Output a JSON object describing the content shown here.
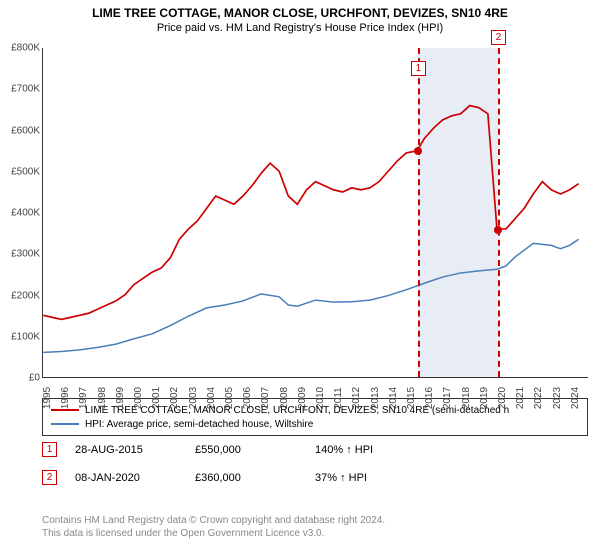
{
  "title": "LIME TREE COTTAGE, MANOR CLOSE, URCHFONT, DEVIZES, SN10 4RE",
  "subtitle": "Price paid vs. HM Land Registry's House Price Index (HPI)",
  "title_fontsize": 12,
  "subtitle_fontsize": 11,
  "chart": {
    "type": "line",
    "x_domain": [
      1995,
      2025
    ],
    "y_domain": [
      0,
      800000
    ],
    "y_ticks": [
      0,
      100000,
      200000,
      300000,
      400000,
      500000,
      600000,
      700000,
      800000
    ],
    "y_labels": [
      "£0",
      "£100K",
      "£200K",
      "£300K",
      "£400K",
      "£500K",
      "£600K",
      "£700K",
      "£800K"
    ],
    "x_ticks": [
      1995,
      1996,
      1997,
      1998,
      1999,
      2000,
      2001,
      2002,
      2003,
      2004,
      2005,
      2006,
      2007,
      2008,
      2009,
      2010,
      2011,
      2012,
      2013,
      2014,
      2015,
      2016,
      2017,
      2018,
      2019,
      2020,
      2021,
      2022,
      2023,
      2024
    ],
    "axis_font_size": 10,
    "series": [
      {
        "name": "property",
        "label": "LIME TREE COTTAGE, MANOR CLOSE, URCHFONT, DEVIZES, SN10 4RE (semi-detached h",
        "color": "#cc0000",
        "width": 1.7,
        "points": [
          [
            1995,
            150000
          ],
          [
            1995.5,
            145000
          ],
          [
            1996,
            140000
          ],
          [
            1996.5,
            145000
          ],
          [
            1997,
            150000
          ],
          [
            1997.5,
            155000
          ],
          [
            1998,
            165000
          ],
          [
            1998.5,
            175000
          ],
          [
            1999,
            185000
          ],
          [
            1999.5,
            200000
          ],
          [
            2000,
            225000
          ],
          [
            2000.5,
            240000
          ],
          [
            2001,
            255000
          ],
          [
            2001.5,
            265000
          ],
          [
            2002,
            290000
          ],
          [
            2002.5,
            335000
          ],
          [
            2003,
            360000
          ],
          [
            2003.5,
            380000
          ],
          [
            2004,
            410000
          ],
          [
            2004.5,
            440000
          ],
          [
            2005,
            430000
          ],
          [
            2005.5,
            420000
          ],
          [
            2006,
            440000
          ],
          [
            2006.5,
            465000
          ],
          [
            2007,
            495000
          ],
          [
            2007.5,
            520000
          ],
          [
            2008,
            500000
          ],
          [
            2008.5,
            440000
          ],
          [
            2009,
            420000
          ],
          [
            2009.5,
            455000
          ],
          [
            2010,
            475000
          ],
          [
            2010.5,
            465000
          ],
          [
            2011,
            455000
          ],
          [
            2011.5,
            450000
          ],
          [
            2012,
            460000
          ],
          [
            2012.5,
            455000
          ],
          [
            2013,
            460000
          ],
          [
            2013.5,
            475000
          ],
          [
            2014,
            500000
          ],
          [
            2014.5,
            525000
          ],
          [
            2015,
            545000
          ],
          [
            2015.6,
            550000
          ],
          [
            2016,
            580000
          ],
          [
            2016.5,
            605000
          ],
          [
            2017,
            625000
          ],
          [
            2017.5,
            635000
          ],
          [
            2018,
            640000
          ],
          [
            2018.5,
            660000
          ],
          [
            2019,
            655000
          ],
          [
            2019.5,
            640000
          ],
          [
            2020,
            360000
          ],
          [
            2020.5,
            360000
          ],
          [
            2021,
            385000
          ],
          [
            2021.5,
            410000
          ],
          [
            2022,
            445000
          ],
          [
            2022.5,
            475000
          ],
          [
            2023,
            455000
          ],
          [
            2023.5,
            445000
          ],
          [
            2024,
            455000
          ],
          [
            2024.5,
            470000
          ]
        ]
      },
      {
        "name": "hpi",
        "label": "HPI: Average price, semi-detached house, Wiltshire",
        "color": "#4a7ebb",
        "width": 1.5,
        "points": [
          [
            1995,
            60000
          ],
          [
            1996,
            62000
          ],
          [
            1997,
            66000
          ],
          [
            1998,
            72000
          ],
          [
            1999,
            80000
          ],
          [
            2000,
            93000
          ],
          [
            2001,
            105000
          ],
          [
            2002,
            125000
          ],
          [
            2003,
            148000
          ],
          [
            2004,
            168000
          ],
          [
            2005,
            175000
          ],
          [
            2006,
            185000
          ],
          [
            2007,
            202000
          ],
          [
            2008,
            195000
          ],
          [
            2008.5,
            175000
          ],
          [
            2009,
            172000
          ],
          [
            2010,
            187000
          ],
          [
            2011,
            182000
          ],
          [
            2012,
            183000
          ],
          [
            2013,
            187000
          ],
          [
            2014,
            198000
          ],
          [
            2015,
            212000
          ],
          [
            2016,
            228000
          ],
          [
            2017,
            243000
          ],
          [
            2018,
            253000
          ],
          [
            2019,
            258000
          ],
          [
            2020,
            262000
          ],
          [
            2020.5,
            270000
          ],
          [
            2021,
            292000
          ],
          [
            2022,
            325000
          ],
          [
            2023,
            320000
          ],
          [
            2023.5,
            312000
          ],
          [
            2024,
            320000
          ],
          [
            2024.5,
            335000
          ]
        ]
      }
    ],
    "shaded_bands": [
      {
        "x_from": 2015.6,
        "x_to": 2020.0,
        "fill": "#e8edf5",
        "opacity": 1
      }
    ],
    "markers": [
      {
        "id": "1",
        "x": 2015.6,
        "y": 550000,
        "color": "#cc0000",
        "label_y_offset": -90
      },
      {
        "id": "2",
        "x": 2020.0,
        "y": 360000,
        "color": "#cc0000",
        "label_y_offset": -200
      }
    ]
  },
  "legend": {
    "border_color": "#333333"
  },
  "transactions": [
    {
      "id": "1",
      "date": "28-AUG-2015",
      "price": "£550,000",
      "pct": "140% ↑ HPI",
      "color": "#cc0000"
    },
    {
      "id": "2",
      "date": "08-JAN-2020",
      "price": "£360,000",
      "pct": "37% ↑ HPI",
      "color": "#cc0000"
    }
  ],
  "footer": {
    "line1": "Contains HM Land Registry data © Crown copyright and database right 2024.",
    "line2": "This data is licensed under the Open Government Licence v3.0.",
    "color": "#888888"
  }
}
